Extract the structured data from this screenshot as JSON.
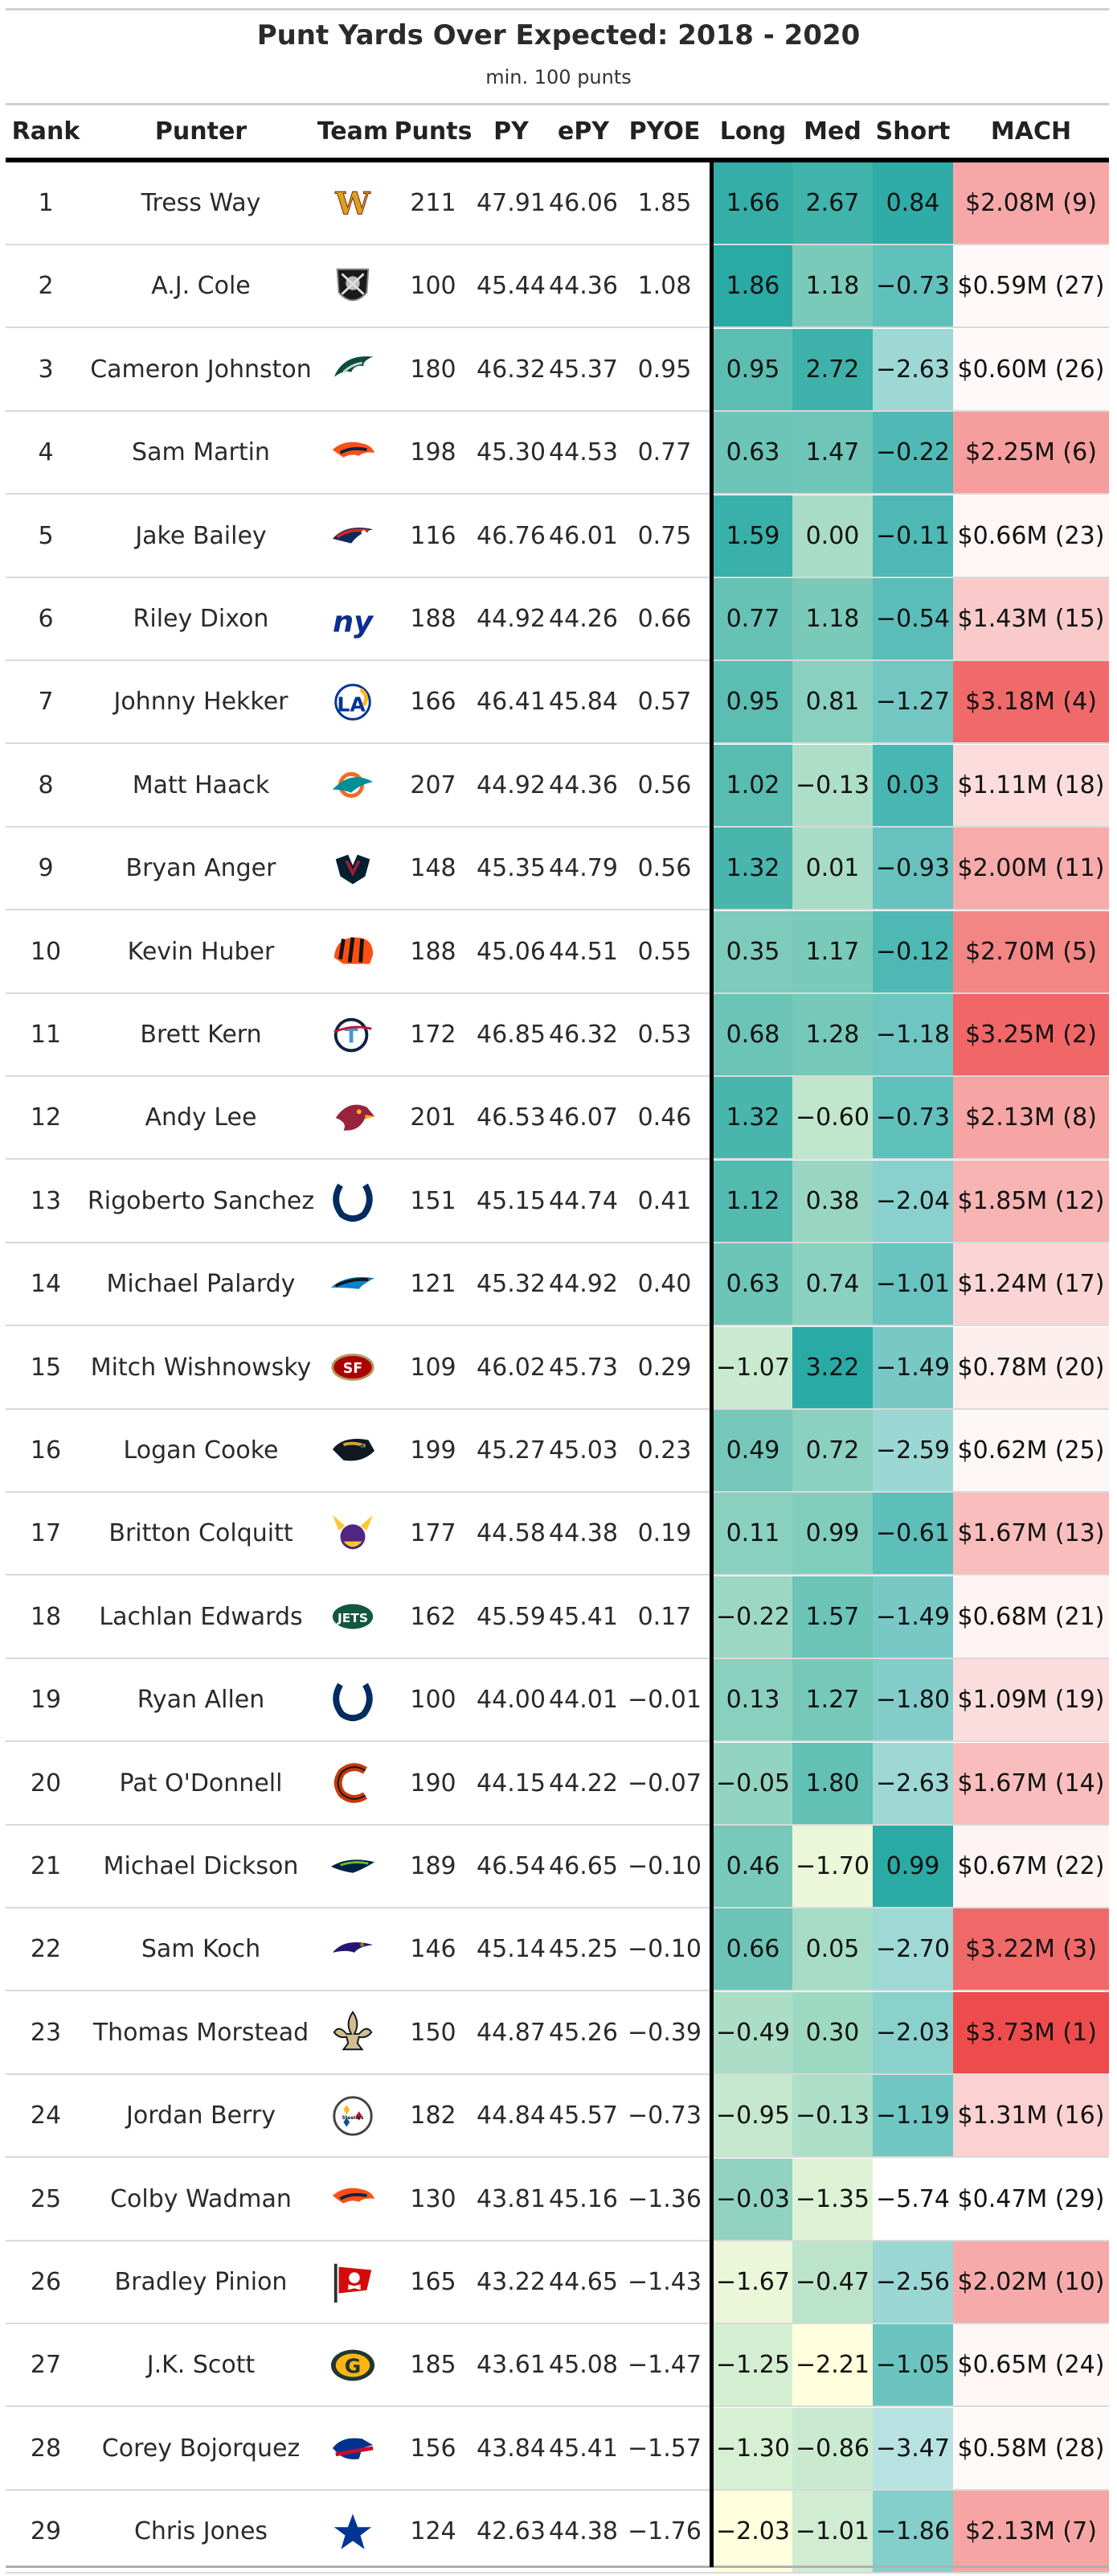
{
  "header": {
    "title": "Punt Yards Over Expected: 2018 - 2020",
    "subtitle": "min. 100 punts"
  },
  "columns": [
    "Rank",
    "Punter",
    "Team",
    "Punts",
    "PY",
    "ePY",
    "PYOE",
    "Long",
    "Med",
    "Short",
    "MACH"
  ],
  "chart_data": {
    "type": "table",
    "title": "Punt Yards Over Expected: 2018 - 2020",
    "subtitle": "min. 100 punts",
    "columns": [
      "Rank",
      "Punter",
      "Team",
      "Punts",
      "PY",
      "ePY",
      "PYOE",
      "Long",
      "Med",
      "Short",
      "MACH"
    ],
    "color_scales": {
      "Long": {
        "low": "#ffffdd",
        "high": "#2aaaa5"
      },
      "Med": {
        "low": "#ffffdd",
        "high": "#2aaaa5"
      },
      "Short": {
        "low": "#ffffff",
        "high": "#2aaaa5"
      },
      "MACH": {
        "low": "#ffffff",
        "high": "#ee4c4c"
      }
    },
    "rows": [
      {
        "rank": "1",
        "punter": "Tress Way",
        "team": "WAS",
        "logo_icon": "commanders-w-logo",
        "punts": "211",
        "py": "47.91",
        "epy": "46.06",
        "pyoe": "1.85",
        "long": "1.66",
        "med": "2.67",
        "short": "0.84",
        "mach": "$2.08M (9)"
      },
      {
        "rank": "2",
        "punter": "A.J. Cole",
        "team": "LV",
        "logo_icon": "raiders-shield-logo",
        "punts": "100",
        "py": "45.44",
        "epy": "44.36",
        "pyoe": "1.08",
        "long": "1.86",
        "med": "1.18",
        "short": "−0.73",
        "mach": "$0.59M (27)"
      },
      {
        "rank": "3",
        "punter": "Cameron Johnston",
        "team": "PHI",
        "logo_icon": "eagles-head-logo",
        "punts": "180",
        "py": "46.32",
        "epy": "45.37",
        "pyoe": "0.95",
        "long": "0.95",
        "med": "2.72",
        "short": "−2.63",
        "mach": "$0.60M (26)"
      },
      {
        "rank": "4",
        "punter": "Sam Martin",
        "team": "DEN",
        "logo_icon": "broncos-horse-logo",
        "punts": "198",
        "py": "45.30",
        "epy": "44.53",
        "pyoe": "0.77",
        "long": "0.63",
        "med": "1.47",
        "short": "−0.22",
        "mach": "$2.25M (6)"
      },
      {
        "rank": "5",
        "punter": "Jake Bailey",
        "team": "NE",
        "logo_icon": "patriots-logo",
        "punts": "116",
        "py": "46.76",
        "epy": "46.01",
        "pyoe": "0.75",
        "long": "1.59",
        "med": "0.00",
        "short": "−0.11",
        "mach": "$0.66M (23)"
      },
      {
        "rank": "6",
        "punter": "Riley Dixon",
        "team": "NYG",
        "logo_icon": "giants-ny-logo",
        "punts": "188",
        "py": "44.92",
        "epy": "44.26",
        "pyoe": "0.66",
        "long": "0.77",
        "med": "1.18",
        "short": "−0.54",
        "mach": "$1.43M (15)"
      },
      {
        "rank": "7",
        "punter": "Johnny Hekker",
        "team": "LAR",
        "logo_icon": "rams-la-logo",
        "punts": "166",
        "py": "46.41",
        "epy": "45.84",
        "pyoe": "0.57",
        "long": "0.95",
        "med": "0.81",
        "short": "−1.27",
        "mach": "$3.18M (4)"
      },
      {
        "rank": "8",
        "punter": "Matt Haack",
        "team": "MIA",
        "logo_icon": "dolphins-logo",
        "punts": "207",
        "py": "44.92",
        "epy": "44.36",
        "pyoe": "0.56",
        "long": "1.02",
        "med": "−0.13",
        "short": "0.03",
        "mach": "$1.11M (18)"
      },
      {
        "rank": "9",
        "punter": "Bryan Anger",
        "team": "HOU",
        "logo_icon": "texans-bull-logo",
        "punts": "148",
        "py": "45.35",
        "epy": "44.79",
        "pyoe": "0.56",
        "long": "1.32",
        "med": "0.01",
        "short": "−0.93",
        "mach": "$2.00M (11)"
      },
      {
        "rank": "10",
        "punter": "Kevin Huber",
        "team": "CIN",
        "logo_icon": "bengals-helmet-logo",
        "punts": "188",
        "py": "45.06",
        "epy": "44.51",
        "pyoe": "0.55",
        "long": "0.35",
        "med": "1.17",
        "short": "−0.12",
        "mach": "$2.70M (5)"
      },
      {
        "rank": "11",
        "punter": "Brett Kern",
        "team": "TEN",
        "logo_icon": "titans-logo",
        "punts": "172",
        "py": "46.85",
        "epy": "46.32",
        "pyoe": "0.53",
        "long": "0.68",
        "med": "1.28",
        "short": "−1.18",
        "mach": "$3.25M (2)"
      },
      {
        "rank": "12",
        "punter": "Andy Lee",
        "team": "ARI",
        "logo_icon": "cardinals-head-logo",
        "punts": "201",
        "py": "46.53",
        "epy": "46.07",
        "pyoe": "0.46",
        "long": "1.32",
        "med": "−0.60",
        "short": "−0.73",
        "mach": "$2.13M (8)"
      },
      {
        "rank": "13",
        "punter": "Rigoberto Sanchez",
        "team": "IND",
        "logo_icon": "colts-horseshoe-logo",
        "punts": "151",
        "py": "45.15",
        "epy": "44.74",
        "pyoe": "0.41",
        "long": "1.12",
        "med": "0.38",
        "short": "−2.04",
        "mach": "$1.85M (12)"
      },
      {
        "rank": "14",
        "punter": "Michael Palardy",
        "team": "CAR",
        "logo_icon": "panthers-logo",
        "punts": "121",
        "py": "45.32",
        "epy": "44.92",
        "pyoe": "0.40",
        "long": "0.63",
        "med": "0.74",
        "short": "−1.01",
        "mach": "$1.24M (17)"
      },
      {
        "rank": "15",
        "punter": "Mitch Wishnowsky",
        "team": "SF",
        "logo_icon": "49ers-oval-logo",
        "punts": "109",
        "py": "46.02",
        "epy": "45.73",
        "pyoe": "0.29",
        "long": "−1.07",
        "med": "3.22",
        "short": "−1.49",
        "mach": "$0.78M (20)"
      },
      {
        "rank": "16",
        "punter": "Logan Cooke",
        "team": "JAX",
        "logo_icon": "jaguars-head-logo",
        "punts": "199",
        "py": "45.27",
        "epy": "45.03",
        "pyoe": "0.23",
        "long": "0.49",
        "med": "0.72",
        "short": "−2.59",
        "mach": "$0.62M (25)"
      },
      {
        "rank": "17",
        "punter": "Britton Colquitt",
        "team": "MIN",
        "logo_icon": "vikings-head-logo",
        "punts": "177",
        "py": "44.58",
        "epy": "44.38",
        "pyoe": "0.19",
        "long": "0.11",
        "med": "0.99",
        "short": "−0.61",
        "mach": "$1.67M (13)"
      },
      {
        "rank": "18",
        "punter": "Lachlan Edwards",
        "team": "NYJ",
        "logo_icon": "jets-logo",
        "punts": "162",
        "py": "45.59",
        "epy": "45.41",
        "pyoe": "0.17",
        "long": "−0.22",
        "med": "1.57",
        "short": "−1.49",
        "mach": "$0.68M (21)"
      },
      {
        "rank": "19",
        "punter": "Ryan Allen",
        "team": "IND",
        "logo_icon": "colts-horseshoe-logo",
        "punts": "100",
        "py": "44.00",
        "epy": "44.01",
        "pyoe": "−0.01",
        "long": "0.13",
        "med": "1.27",
        "short": "−1.80",
        "mach": "$1.09M (19)"
      },
      {
        "rank": "20",
        "punter": "Pat O'Donnell",
        "team": "CHI",
        "logo_icon": "bears-c-logo",
        "punts": "190",
        "py": "44.15",
        "epy": "44.22",
        "pyoe": "−0.07",
        "long": "−0.05",
        "med": "1.80",
        "short": "−2.63",
        "mach": "$1.67M (14)"
      },
      {
        "rank": "21",
        "punter": "Michael Dickson",
        "team": "SEA",
        "logo_icon": "seahawks-logo",
        "punts": "189",
        "py": "46.54",
        "epy": "46.65",
        "pyoe": "−0.10",
        "long": "0.46",
        "med": "−1.70",
        "short": "0.99",
        "mach": "$0.67M (22)"
      },
      {
        "rank": "22",
        "punter": "Sam Koch",
        "team": "BAL",
        "logo_icon": "ravens-logo",
        "punts": "146",
        "py": "45.14",
        "epy": "45.25",
        "pyoe": "−0.10",
        "long": "0.66",
        "med": "0.05",
        "short": "−2.70",
        "mach": "$3.22M (3)"
      },
      {
        "rank": "23",
        "punter": "Thomas Morstead",
        "team": "NO",
        "logo_icon": "saints-fleur-de-lis-logo",
        "punts": "150",
        "py": "44.87",
        "epy": "45.26",
        "pyoe": "−0.39",
        "long": "−0.49",
        "med": "0.30",
        "short": "−2.03",
        "mach": "$3.73M (1)"
      },
      {
        "rank": "24",
        "punter": "Jordan Berry",
        "team": "PIT",
        "logo_icon": "steelers-logo",
        "punts": "182",
        "py": "44.84",
        "epy": "45.57",
        "pyoe": "−0.73",
        "long": "−0.95",
        "med": "−0.13",
        "short": "−1.19",
        "mach": "$1.31M (16)"
      },
      {
        "rank": "25",
        "punter": "Colby Wadman",
        "team": "DEN",
        "logo_icon": "broncos-horse-logo",
        "punts": "130",
        "py": "43.81",
        "epy": "45.16",
        "pyoe": "−1.36",
        "long": "−0.03",
        "med": "−1.35",
        "short": "−5.74",
        "mach": "$0.47M (29)"
      },
      {
        "rank": "26",
        "punter": "Bradley Pinion",
        "team": "TB",
        "logo_icon": "buccaneers-flag-logo",
        "punts": "165",
        "py": "43.22",
        "epy": "44.65",
        "pyoe": "−1.43",
        "long": "−1.67",
        "med": "−0.47",
        "short": "−2.56",
        "mach": "$2.02M (10)"
      },
      {
        "rank": "27",
        "punter": "J.K. Scott",
        "team": "GB",
        "logo_icon": "packers-g-logo",
        "punts": "185",
        "py": "43.61",
        "epy": "45.08",
        "pyoe": "−1.47",
        "long": "−1.25",
        "med": "−2.21",
        "short": "−1.05",
        "mach": "$0.65M (24)"
      },
      {
        "rank": "28",
        "punter": "Corey Bojorquez",
        "team": "BUF",
        "logo_icon": "bills-buffalo-logo",
        "punts": "156",
        "py": "43.84",
        "epy": "45.41",
        "pyoe": "−1.57",
        "long": "−1.30",
        "med": "−0.86",
        "short": "−3.47",
        "mach": "$0.58M (28)"
      },
      {
        "rank": "29",
        "punter": "Chris Jones",
        "team": "DAL",
        "logo_icon": "cowboys-star-logo",
        "punts": "124",
        "py": "42.63",
        "epy": "44.38",
        "pyoe": "−1.76",
        "long": "−2.03",
        "med": "−1.01",
        "short": "−1.86",
        "mach": "$2.13M (7)"
      }
    ]
  }
}
